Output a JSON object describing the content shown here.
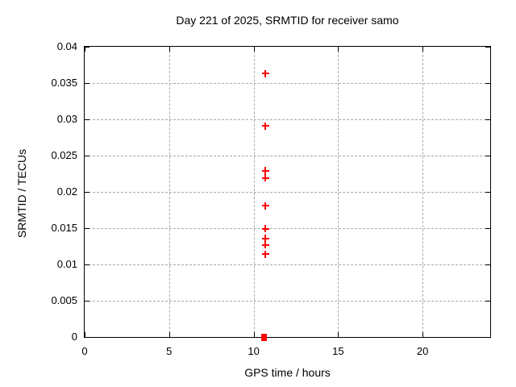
{
  "figure": {
    "background": "#ffffff",
    "border_color": "#000000",
    "grid_color": "#a8a8a8"
  },
  "chart_data": {
    "type": "scatter",
    "title": "Day 221 of 2025, SRMTID for receiver samo",
    "xlabel": "GPS time / hours",
    "ylabel": "SRMTID / TECUs",
    "xlim": [
      0,
      24
    ],
    "ylim": [
      0,
      0.04
    ],
    "xticks": [
      "0",
      "5",
      "10",
      "15",
      "20"
    ],
    "yticks": [
      "0",
      "0.005",
      "0.01",
      "0.015",
      "0.02",
      "0.025",
      "0.03",
      "0.035",
      "0.04"
    ],
    "grid": true,
    "legend": "none",
    "marker": "plus",
    "marker_color": "#ff0000",
    "series": [
      {
        "name": "SRMTID",
        "points": [
          {
            "x": 10.7,
            "y": 0.0363
          },
          {
            "x": 10.7,
            "y": 0.0291
          },
          {
            "x": 10.7,
            "y": 0.0229
          },
          {
            "x": 10.7,
            "y": 0.0219
          },
          {
            "x": 10.7,
            "y": 0.0181
          },
          {
            "x": 10.7,
            "y": 0.0149
          },
          {
            "x": 10.7,
            "y": 0.0136
          },
          {
            "x": 10.7,
            "y": 0.0127
          },
          {
            "x": 10.7,
            "y": 0.0114
          }
        ]
      }
    ],
    "zero_cluster": {
      "x": 10.6,
      "y": 0
    }
  }
}
